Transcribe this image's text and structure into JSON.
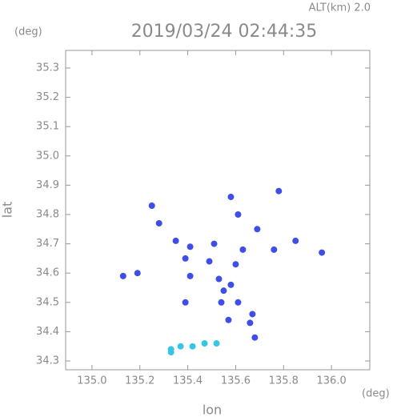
{
  "chart_data": {
    "type": "scatter",
    "altitude": "ALT(km) 2.0",
    "title": "2019/03/24 02:44:35",
    "y_unit": "(deg)",
    "x_unit": "(deg)",
    "ylabel": "lat",
    "xlabel": "lon",
    "xlim": [
      134.89,
      136.16
    ],
    "ylim": [
      34.27,
      35.36
    ],
    "xticks": [
      {
        "value": 135.0,
        "label": "135.0"
      },
      135.2,
      135.4,
      135.6,
      135.8,
      {
        "value": 136.0,
        "label": "136.0"
      }
    ],
    "yticks": [
      34.3,
      34.4,
      34.5,
      34.6,
      34.7,
      34.8,
      34.9,
      {
        "value": 35.0,
        "label": "35.0"
      },
      35.1,
      35.2,
      35.3
    ],
    "grid": false,
    "series": [
      {
        "color": "#3d4fe6",
        "x": [
          135.78,
          135.58,
          135.25,
          135.28,
          135.61,
          135.69,
          135.35,
          135.41,
          135.51,
          135.63,
          135.85,
          135.96,
          135.76,
          135.13,
          135.19,
          135.39,
          135.49,
          135.6,
          135.41,
          135.53,
          135.58,
          135.55,
          135.54,
          135.61,
          135.39,
          135.67,
          135.57,
          135.66,
          135.68
        ],
        "y": [
          34.88,
          34.86,
          34.83,
          34.77,
          34.8,
          34.75,
          34.71,
          34.69,
          34.7,
          34.68,
          34.71,
          34.67,
          34.68,
          34.59,
          34.6,
          34.65,
          34.64,
          34.63,
          34.59,
          34.58,
          34.56,
          34.54,
          34.5,
          34.5,
          34.5,
          34.46,
          34.44,
          34.43,
          34.38
        ]
      },
      {
        "color": "#35c6e4",
        "x": [
          135.33,
          135.33,
          135.37,
          135.42,
          135.47,
          135.52
        ],
        "y": [
          34.33,
          34.34,
          34.35,
          34.35,
          34.36,
          34.36
        ]
      }
    ]
  }
}
